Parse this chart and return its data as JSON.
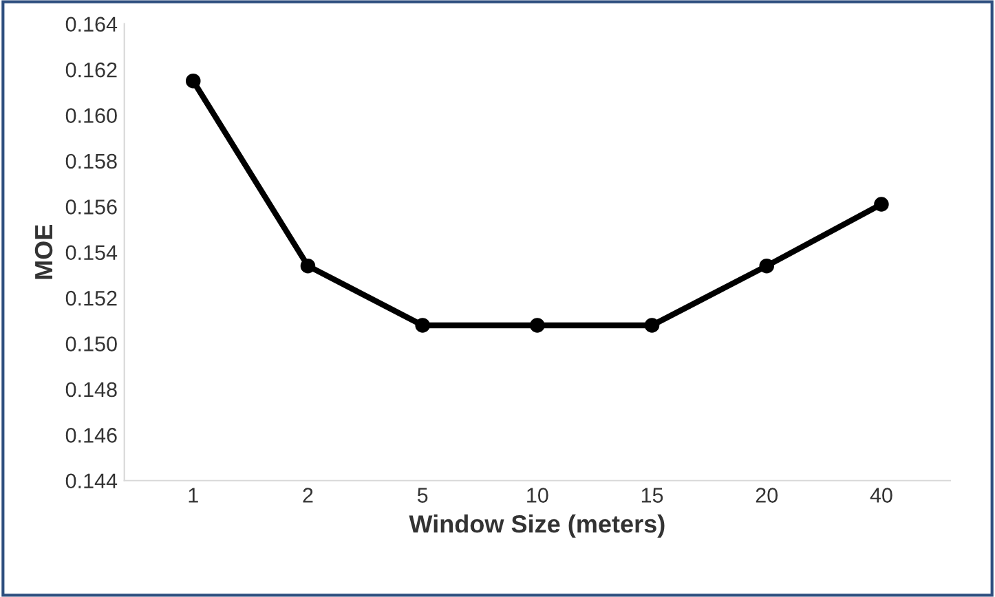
{
  "chart_data": {
    "type": "line",
    "xlabel": "Window Size (meters)",
    "ylabel": "MOE",
    "categories": [
      "1",
      "2",
      "5",
      "10",
      "15",
      "20",
      "40"
    ],
    "series": [
      {
        "color": "#000000",
        "values": [
          0.1615,
          0.1534,
          0.1508,
          0.1508,
          0.1508,
          0.1534,
          0.1561
        ]
      }
    ],
    "ylim": [
      0.144,
      0.164
    ],
    "yticks": [
      0.144,
      0.146,
      0.148,
      {
        "value": 0.15,
        "label": "0.150"
      },
      0.152,
      0.154,
      0.156,
      0.158,
      {
        "value": 0.16,
        "label": "0.160"
      },
      0.162,
      0.164
    ],
    "marker": "circle",
    "line_style": "solid"
  }
}
